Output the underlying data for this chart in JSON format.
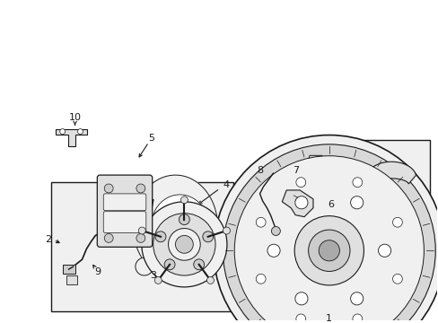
{
  "bg_color": "#ffffff",
  "lc": "#1a1a1a",
  "fill_light": "#f0f0f0",
  "fill_mid": "#e0e0e0",
  "fill_dark": "#cccccc",
  "box_fill": "#f0f0f0",
  "figsize": [
    4.89,
    3.6
  ],
  "dpi": 100
}
